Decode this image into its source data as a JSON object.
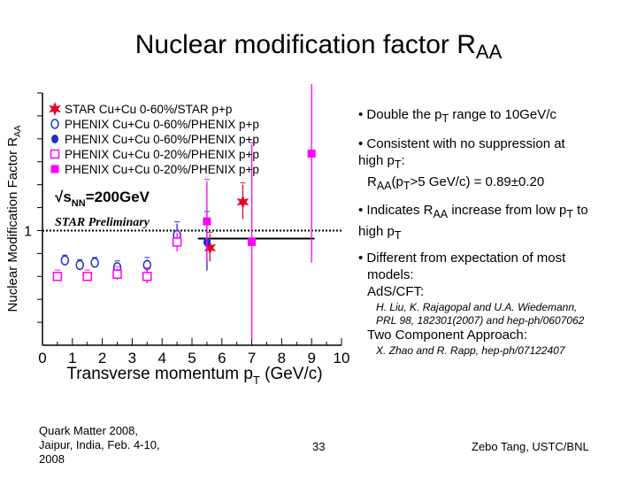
{
  "slide": {
    "title": "Nuclear modification factor R",
    "title_sub": "AA",
    "bullets": {
      "b1_prefix": "• Double the p",
      "b1_sub": "T",
      "b1_suffix": " range to 10GeV/c",
      "b2_line1": "• Consistent with no suppression at",
      "b2_line2a": "high p",
      "b2_line2sub": "T",
      "b2_line2b": ":",
      "b2_line3a": "R",
      "b2_line3sub": "AA",
      "b2_line3b": "(p",
      "b2_line3sub2": "T",
      "b2_line3c": ">5 GeV/c) = 0.89±0.20",
      "b3_line1a": "• Indicates R",
      "b3_line1sub": "AA",
      "b3_line1b": " increase from low p",
      "b3_line1sub2": "T",
      "b3_line1c": " to",
      "b3_line2a": "high p",
      "b3_line2sub": "T",
      "b4_line1": "• Different from expectation of most",
      "b4_line2": "models:",
      "b4_line3": "AdS/CFT:",
      "ref1_line1": "H. Liu, K. Rajagopal and U.A. Wiedemann,",
      "ref1_line2": "PRL 98, 182301(2007) and hep-ph/0607062",
      "b5": "Two Component Approach:",
      "ref2": "X. Zhao and R. Rapp, hep-ph/07122407"
    },
    "footer": {
      "left_line1": "Quark Matter 2008,",
      "left_line2": "Jaipur, India, Feb. 4-10,",
      "left_line3": "2008",
      "page": "33",
      "author": "Zebo Tang, USTC/BNL"
    }
  },
  "chart_data": {
    "type": "scatter",
    "ylabel": "Nuclear Modification Factor R",
    "ylabel_sub": "AA",
    "xlabel": "Transverse momentum p",
    "xlabel_sub": "T",
    "xlabel_unit": " (GeV/c)",
    "xlim": [
      0,
      10
    ],
    "ylim": [
      0,
      2.2
    ],
    "x_ticks": [
      "0",
      "1",
      "2",
      "3",
      "4",
      "5",
      "6",
      "7",
      "8",
      "9",
      "10"
    ],
    "y_ticks": [
      "1"
    ],
    "energy_label": "√s",
    "energy_label_sub": "NN",
    "energy_label_value": "=200GeV",
    "preliminary_label": "STAR Preliminary",
    "reference_line": 1.0,
    "colors": {
      "star": "#e8002a",
      "phenix_blue": "#1f2ecc",
      "phenix_magenta": "#ff00ff",
      "band": "#000000"
    },
    "series": [
      {
        "name": "STAR Cu+Cu 0-60%/STAR p+p",
        "marker": "star",
        "color": "#e8002a",
        "points": [
          {
            "x": 5.6,
            "y": 0.85,
            "err": 0.12
          },
          {
            "x": 6.7,
            "y": 1.25,
            "err": 0.15
          }
        ]
      },
      {
        "name": "PHENIX Cu+Cu 0-60%/PHENIX p+p",
        "marker": "open-circle",
        "color": "#1f2ecc",
        "points": [
          {
            "x": 0.75,
            "y": 0.74,
            "err": 0.03
          },
          {
            "x": 1.25,
            "y": 0.7,
            "err": 0.03
          },
          {
            "x": 1.75,
            "y": 0.72,
            "err": 0.03
          },
          {
            "x": 2.5,
            "y": 0.68,
            "err": 0.04
          },
          {
            "x": 3.5,
            "y": 0.7,
            "err": 0.05
          },
          {
            "x": 4.5,
            "y": 0.96,
            "err": 0.1
          }
        ]
      },
      {
        "name": "PHENIX Cu+Cu 0-60%/PHENIX p+p",
        "marker": "filled-circle",
        "color": "#1f2ecc",
        "points": [
          {
            "x": 5.5,
            "y": 0.9,
            "err": 0.25
          }
        ]
      },
      {
        "name": "PHENIX Cu+Cu 0-20%/PHENIX p+p",
        "marker": "open-square",
        "color": "#ff00ff",
        "points": [
          {
            "x": 0.5,
            "y": 0.6,
            "err": 0.04
          },
          {
            "x": 1.5,
            "y": 0.6,
            "err": 0.04
          },
          {
            "x": 2.5,
            "y": 0.62,
            "err": 0.05
          },
          {
            "x": 3.5,
            "y": 0.6,
            "err": 0.06
          },
          {
            "x": 4.5,
            "y": 0.9,
            "err": 0.08
          }
        ]
      },
      {
        "name": "PHENIX Cu+Cu 0-20%/PHENIX p+p",
        "marker": "filled-square",
        "color": "#ff00ff",
        "points": [
          {
            "x": 5.5,
            "y": 1.08,
            "err": 0.35
          },
          {
            "x": 7.0,
            "y": 0.9,
            "err": 0.85
          },
          {
            "x": 9.0,
            "y": 1.67,
            "err": 0.95
          }
        ]
      }
    ],
    "band": {
      "x_start": 5.2,
      "x_end": 9.1,
      "y": 0.93
    }
  }
}
